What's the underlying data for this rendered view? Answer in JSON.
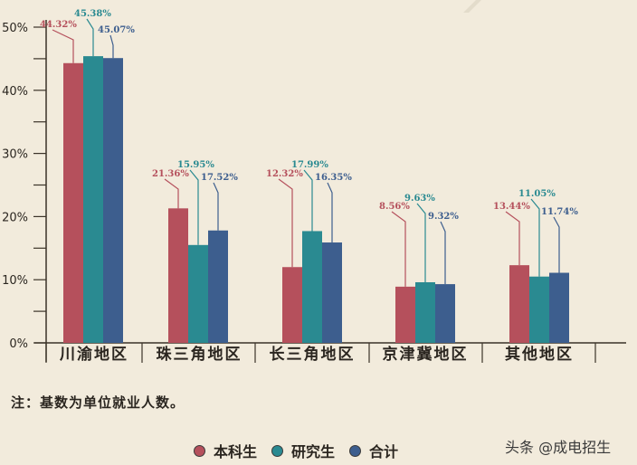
{
  "chart_data": {
    "type": "bar",
    "title": "",
    "xlabel": "",
    "ylabel": "",
    "ylim": [
      0,
      50
    ],
    "yticks": [
      "0%",
      "10%",
      "20%",
      "30%",
      "40%",
      "50%"
    ],
    "grid": false,
    "legend_position": "bottom",
    "categories": [
      "川渝地区",
      "珠三角地区",
      "长三角地区",
      "京津冀地区",
      "其他地区"
    ],
    "series": [
      {
        "name": "本科生",
        "color": "#b5505c",
        "values": [
          44.32,
          21.36,
          12.32,
          8.56,
          13.44
        ],
        "labels": [
          "44.32%",
          "21.36%",
          "12.32%",
          "8.56%",
          "13.44%"
        ],
        "drawn": [
          44.3,
          21.3,
          12.0,
          8.9,
          12.3
        ]
      },
      {
        "name": "研究生",
        "color": "#2a8a91",
        "values": [
          45.38,
          15.95,
          17.99,
          9.63,
          11.05
        ],
        "labels": [
          "45.38%",
          "15.95%",
          "17.99%",
          "9.63%",
          "11.05%"
        ],
        "drawn": [
          45.4,
          15.5,
          17.7,
          9.6,
          10.5
        ]
      },
      {
        "name": "合计",
        "color": "#3d5e8e",
        "values": [
          45.07,
          17.52,
          16.35,
          9.32,
          11.74
        ],
        "labels": [
          "45.07%",
          "17.52%",
          "16.35%",
          "9.32%",
          "11.74%"
        ],
        "drawn": [
          45.1,
          17.8,
          15.9,
          9.3,
          11.1
        ]
      }
    ]
  },
  "note": "注：基数为单位就业人数。",
  "legend": [
    {
      "label": "本科生",
      "color": "#b5505c"
    },
    {
      "label": "研究生",
      "color": "#2a8a91"
    },
    {
      "label": "合计",
      "color": "#3d5e8e"
    }
  ],
  "watermark": "头条 @成电招生"
}
